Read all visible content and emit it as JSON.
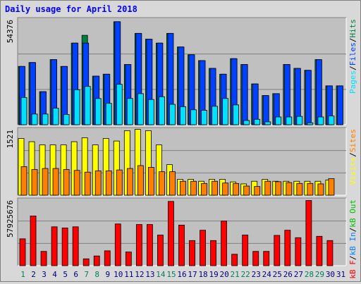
{
  "title": "Daily usage for April 2018",
  "colors": {
    "pages": "#00e0ff",
    "files": "#0040ff",
    "hits": "#008040",
    "visits": "#ffff00",
    "sites": "#ff8000",
    "kb": "#ff0000",
    "weekend_label": "#00805c",
    "weekday_label": "#000080",
    "panel_bg": "#c0c0c0"
  },
  "chart_data": [
    {
      "type": "bar",
      "panel": "hits-files-pages",
      "ymax_label": "54376",
      "ylim": [
        0,
        54376
      ],
      "right_labels": [
        "Pages",
        "/",
        "Files",
        "/",
        "Hits"
      ],
      "categories": [
        "1",
        "2",
        "3",
        "4",
        "5",
        "6",
        "7",
        "8",
        "9",
        "10",
        "11",
        "12",
        "13",
        "14",
        "15",
        "16",
        "17",
        "18",
        "19",
        "20",
        "21",
        "22",
        "23",
        "24",
        "25",
        "26",
        "27",
        "28",
        "29",
        "30",
        "31"
      ],
      "series": [
        {
          "name": "Hits",
          "values": [
            30000,
            32000,
            17000,
            33500,
            30000,
            42000,
            46000,
            25000,
            26000,
            53000,
            31000,
            47000,
            44000,
            42000,
            47000,
            40000,
            36000,
            33000,
            29000,
            26000,
            34000,
            31000,
            21000,
            15000,
            16000,
            31000,
            29000,
            28000,
            33500,
            20000,
            20000
          ]
        },
        {
          "name": "Files",
          "values": [
            30000,
            32000,
            17000,
            33500,
            30000,
            42000,
            42000,
            25000,
            26000,
            53000,
            31000,
            47000,
            44000,
            42000,
            47000,
            40000,
            36000,
            33000,
            29000,
            26000,
            34000,
            31000,
            21000,
            15000,
            16000,
            31000,
            29000,
            28000,
            33500,
            20000,
            20000
          ]
        },
        {
          "name": "Pages",
          "values": [
            14000,
            5500,
            5500,
            8500,
            5300,
            18000,
            19700,
            13500,
            11000,
            20800,
            13500,
            16000,
            13000,
            14400,
            10500,
            9300,
            7700,
            7400,
            9500,
            13500,
            10200,
            2200,
            2800,
            1500,
            4000,
            4000,
            4300,
            1000,
            4000,
            4500,
            0
          ]
        }
      ]
    },
    {
      "type": "bar",
      "panel": "visits-sites",
      "ymax_label": "1521",
      "ylim": [
        0,
        1521
      ],
      "right_labels": [
        "Visits",
        "/",
        "Sites"
      ],
      "categories": [
        "1",
        "2",
        "3",
        "4",
        "5",
        "6",
        "7",
        "8",
        "9",
        "10",
        "11",
        "12",
        "13",
        "14",
        "15",
        "16",
        "17",
        "18",
        "19",
        "20",
        "21",
        "22",
        "23",
        "24",
        "25",
        "26",
        "27",
        "28",
        "29",
        "30",
        "31"
      ],
      "series": [
        {
          "name": "Visits",
          "values": [
            1303,
            1229,
            1155,
            1155,
            1155,
            1229,
            1318,
            1155,
            1303,
            1244,
            1481,
            1512,
            1482,
            1155,
            702,
            364,
            364,
            320,
            364,
            364,
            305,
            260,
            320,
            364,
            320,
            320,
            320,
            320,
            320,
            350,
            0
          ]
        },
        {
          "name": "Sites",
          "values": [
            657,
            590,
            614,
            614,
            590,
            570,
            530,
            560,
            560,
            580,
            614,
            680,
            640,
            540,
            540,
            320,
            320,
            270,
            320,
            280,
            270,
            210,
            200,
            320,
            310,
            290,
            270,
            270,
            260,
            380,
            0
          ]
        }
      ]
    },
    {
      "type": "bar",
      "panel": "kbf",
      "ymax_label": "57925676",
      "ylim": [
        0,
        57925676
      ],
      "right_labels": [
        "kB F",
        "/",
        "kB In",
        "/",
        "kB Out"
      ],
      "categories": [
        "1",
        "2",
        "3",
        "4",
        "5",
        "6",
        "7",
        "8",
        "9",
        "10",
        "11",
        "12",
        "13",
        "14",
        "15",
        "16",
        "17",
        "18",
        "19",
        "20",
        "21",
        "22",
        "23",
        "24",
        "25",
        "26",
        "27",
        "28",
        "29",
        "30",
        "31"
      ],
      "series": [
        {
          "name": "kB F",
          "values": [
            23500,
            43500,
            12500,
            34000,
            33000,
            34000,
            6000,
            8500,
            13000,
            36500,
            12000,
            36000,
            36000,
            26800,
            56200,
            35500,
            22000,
            31000,
            22000,
            39000,
            10000,
            26800,
            12500,
            12500,
            26500,
            31000,
            24500,
            57000,
            25700,
            22000,
            0
          ]
        }
      ]
    }
  ],
  "day_labels": [
    {
      "t": "1",
      "weekend": true
    },
    {
      "t": "2",
      "weekend": false
    },
    {
      "t": "3",
      "weekend": false
    },
    {
      "t": "4",
      "weekend": false
    },
    {
      "t": "5",
      "weekend": false
    },
    {
      "t": "6",
      "weekend": false
    },
    {
      "t": "7",
      "weekend": true
    },
    {
      "t": "8",
      "weekend": true
    },
    {
      "t": "9",
      "weekend": false
    },
    {
      "t": "10",
      "weekend": false
    },
    {
      "t": "11",
      "weekend": false
    },
    {
      "t": "12",
      "weekend": false
    },
    {
      "t": "13",
      "weekend": false
    },
    {
      "t": "14",
      "weekend": true
    },
    {
      "t": "15",
      "weekend": true
    },
    {
      "t": "16",
      "weekend": false
    },
    {
      "t": "17",
      "weekend": false
    },
    {
      "t": "18",
      "weekend": false
    },
    {
      "t": "19",
      "weekend": false
    },
    {
      "t": "20",
      "weekend": false
    },
    {
      "t": "21",
      "weekend": true
    },
    {
      "t": "22",
      "weekend": true
    },
    {
      "t": "23",
      "weekend": false
    },
    {
      "t": "24",
      "weekend": false
    },
    {
      "t": "25",
      "weekend": false
    },
    {
      "t": "26",
      "weekend": false
    },
    {
      "t": "27",
      "weekend": false
    },
    {
      "t": "28",
      "weekend": true
    },
    {
      "t": "29",
      "weekend": true
    },
    {
      "t": "30",
      "weekend": false
    },
    {
      "t": "31",
      "weekend": false
    }
  ]
}
